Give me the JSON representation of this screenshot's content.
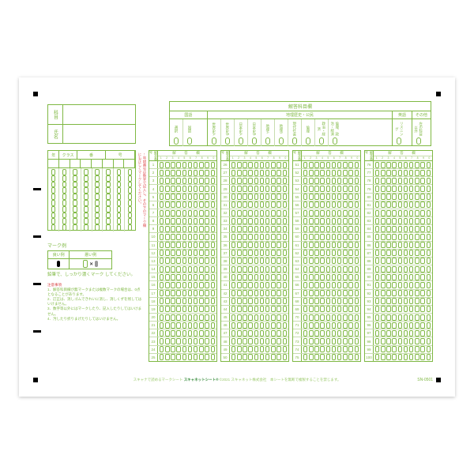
{
  "subjects_title": "解答科目欄",
  "name_labels": [
    "科目",
    "氏名"
  ],
  "subject_groups": [
    {
      "label": "国語",
      "items": [
        "選択",
        "国語"
      ]
    },
    {
      "label": "地理歴史・公民",
      "items": [
        "世界史A",
        "世界史B",
        "日本史A",
        "日本史B",
        "地理A",
        "地理B",
        "現代社会",
        "倫理",
        "政治・経済",
        "倫理、政治・経済"
      ]
    },
    {
      "label": "英語",
      "items": [
        "リスニング"
      ]
    },
    {
      "label": "その他",
      "items": [
        "左の科目以外"
      ]
    }
  ],
  "id_headers": [
    "年",
    "クラス",
    "番",
    "号"
  ],
  "id_cols": 8,
  "bubble_digits": [
    "0",
    "1",
    "2",
    "3",
    "4",
    "5",
    "6",
    "7",
    "8",
    "9"
  ],
  "vnote": "←年組番号は数字で記入し、その下のマーク欄にも正しくマークしてください。",
  "markex_title": "マーク例",
  "markex_good": "良い例",
  "markex_bad": "悪い例",
  "hint": "鉛筆で、しっかり濃くマーク\nしてください。",
  "notes_title": "注意事項",
  "notes": [
    "1．解答科目欄が無マークまたは複数マークの場合は、0点となることがあります。",
    "2．訂正は、消しゴムできれいに消し、消しくずを残してはいけません。",
    "3．数字等以外にはマークしたり、記入したりしてはいけません。",
    "4．汚したり折りまげたりしてはいけません。"
  ],
  "answer_header_label": "解答番号",
  "answer_header_title": "解　答　欄",
  "choice_labels": [
    "1",
    "2",
    "3",
    "4",
    "5",
    "6",
    "7",
    "8",
    "9",
    "0"
  ],
  "columns": 4,
  "rows_per_col": 25,
  "footer": "スキャナで読めるマークシート",
  "brand": "スキャネットシート®",
  "copyright": "©2021 スキャネット株式会社　本シートを無断で複製することを禁じます。",
  "sn": "SN-0501"
}
